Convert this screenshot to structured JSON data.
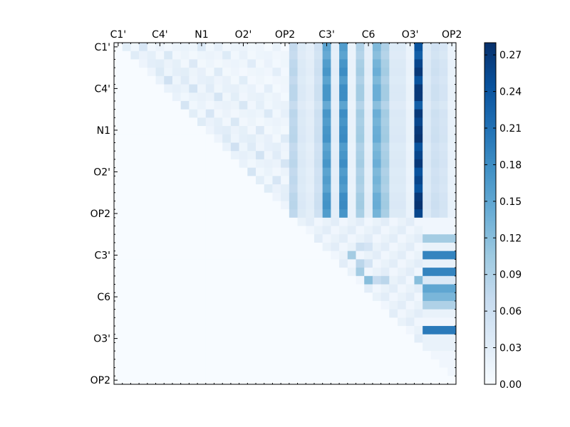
{
  "chart_data": {
    "type": "heatmap",
    "title": "",
    "xlabel": "",
    "ylabel": "",
    "size": 41,
    "x_tick_labels": [
      "C1'",
      "C4'",
      "N1",
      "O2'",
      "OP2",
      "C3'",
      "C6",
      "O3'",
      "OP2"
    ],
    "x_tick_indices": [
      0,
      5,
      10,
      15,
      20,
      25,
      30,
      35,
      40
    ],
    "y_tick_labels": [
      "C1'",
      "C4'",
      "N1",
      "O2'",
      "OP2",
      "C3'",
      "C6",
      "O3'",
      "OP2"
    ],
    "y_tick_indices": [
      0,
      5,
      10,
      15,
      20,
      25,
      30,
      35,
      40
    ],
    "colorbar": {
      "min": 0.0,
      "max": 0.28,
      "ticks": [
        0.0,
        0.03,
        0.06,
        0.09,
        0.12,
        0.15,
        0.18,
        0.21,
        0.24,
        0.27
      ],
      "tick_labels": [
        "0.00",
        "0.03",
        "0.06",
        "0.09",
        "0.12",
        "0.15",
        "0.18",
        "0.21",
        "0.24",
        "0.27"
      ],
      "colormap": [
        "#f7fbff",
        "#deebf7",
        "#c6dbef",
        "#9ecae1",
        "#6baed6",
        "#4292c6",
        "#2171b5",
        "#08519c",
        "#08306b"
      ]
    },
    "upper_block": {
      "rows": [
        0,
        20
      ],
      "columns": [
        21,
        40
      ],
      "profile": [
        0.08,
        0.04,
        0.03,
        0.06,
        0.17,
        0.03,
        0.18,
        0.02,
        0.1,
        0.03,
        0.14,
        0.1,
        0.04,
        0.04,
        0.02,
        0.27,
        0.04,
        0.06,
        0.05,
        0.02
      ],
      "row_scale": [
        0.9,
        0.85,
        0.95,
        1.0,
        0.9,
        1.0,
        1.0,
        0.85,
        1.0,
        0.95,
        1.0,
        1.02,
        0.9,
        0.95,
        1.0,
        0.9,
        0.95,
        0.9,
        1.0,
        1.02,
        0.95
      ]
    },
    "lower_block": {
      "rows": [
        21,
        39
      ],
      "columns": [
        22,
        40
      ],
      "row_profile": [
        0.01,
        0.01,
        0.1,
        0.02,
        0.19,
        0.02,
        0.19,
        0.04,
        0.15,
        0.13,
        0.09,
        0.02,
        0.01,
        0.2,
        0.02,
        0.02,
        0.01,
        0.01,
        0.01
      ],
      "extra_cells": [
        {
          "row": 24,
          "col": 29,
          "value": 0.06
        },
        {
          "row": 24,
          "col": 30,
          "value": 0.05
        },
        {
          "row": 25,
          "col": 28,
          "value": 0.1
        },
        {
          "row": 26,
          "col": 29,
          "value": 0.08
        },
        {
          "row": 26,
          "col": 30,
          "value": 0.05
        },
        {
          "row": 27,
          "col": 29,
          "value": 0.1
        },
        {
          "row": 28,
          "col": 30,
          "value": 0.12
        },
        {
          "row": 28,
          "col": 31,
          "value": 0.07
        },
        {
          "row": 28,
          "col": 32,
          "value": 0.08
        },
        {
          "row": 28,
          "col": 36,
          "value": 0.12
        }
      ]
    },
    "triangle_values": [
      0.02,
      0.015,
      0.01,
      0.03,
      0.04,
      0.02,
      0.01,
      0.015,
      0.025,
      0.05,
      0.03,
      0.02,
      0.01,
      0.035,
      0.06,
      0.02
    ]
  }
}
